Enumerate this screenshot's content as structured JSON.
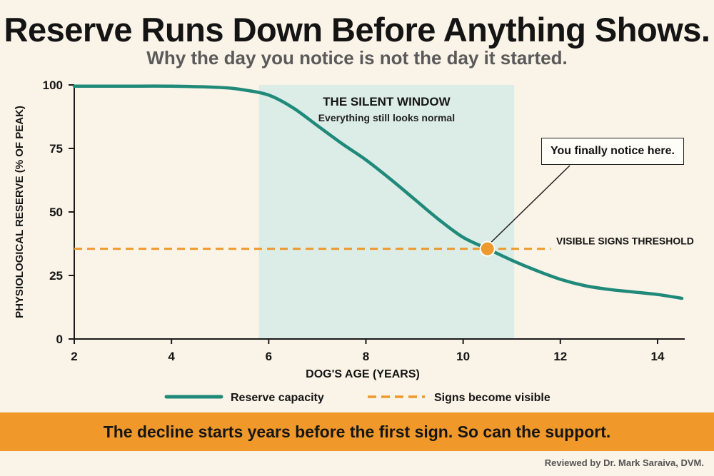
{
  "header": {
    "title": "Reserve Runs Down Before Anything Shows.",
    "subtitle": "Why the day you notice is not the day it started."
  },
  "chart_data": {
    "type": "line",
    "ylabel": "PHYSIOLOGICAL RESERVE (% OF PEAK)",
    "xlabel": "DOG'S AGE (YEARS)",
    "xlim": [
      2,
      14.5
    ],
    "ylim": [
      0,
      100
    ],
    "xticks": [
      2,
      4,
      6,
      8,
      10,
      12,
      14
    ],
    "yticks": [
      0,
      25,
      50,
      75,
      100
    ],
    "grid": false,
    "series": [
      {
        "name": "Reserve capacity",
        "color": "#1f8a7a",
        "x": [
          2,
          3,
          4,
          5,
          5.5,
          6,
          6.5,
          7,
          7.5,
          8,
          8.5,
          9,
          9.5,
          10,
          10.5,
          11,
          11.5,
          12,
          12.5,
          13,
          13.5,
          14,
          14.5
        ],
        "y": [
          99.5,
          99.5,
          99.5,
          99,
          98,
          96,
          91,
          84,
          77,
          70.5,
          63,
          55,
          47,
          40,
          35.5,
          31,
          27,
          23.5,
          21,
          19.5,
          18.5,
          17.5,
          16
        ]
      }
    ],
    "threshold": {
      "name": "Signs become visible",
      "label": "VISIBLE SIGNS THRESHOLD",
      "y": 35.5,
      "x_end": 11.8,
      "color": "#ee9a2e"
    },
    "window": {
      "title": "THE SILENT WINDOW",
      "subtitle": "Everything still looks normal",
      "x_start": 5.8,
      "x_end": 11.05,
      "color": "#dcece6"
    },
    "marker": {
      "x": 10.5,
      "y": 35.5,
      "color": "#ee9a2e"
    },
    "callout": "You finally notice here.",
    "legend_placement": "bottom"
  },
  "banner": {
    "text": "The decline starts years before the first sign. So can the support."
  },
  "footer": {
    "reviewer": "Reviewed by Dr. Mark Saraiva, DVM."
  }
}
